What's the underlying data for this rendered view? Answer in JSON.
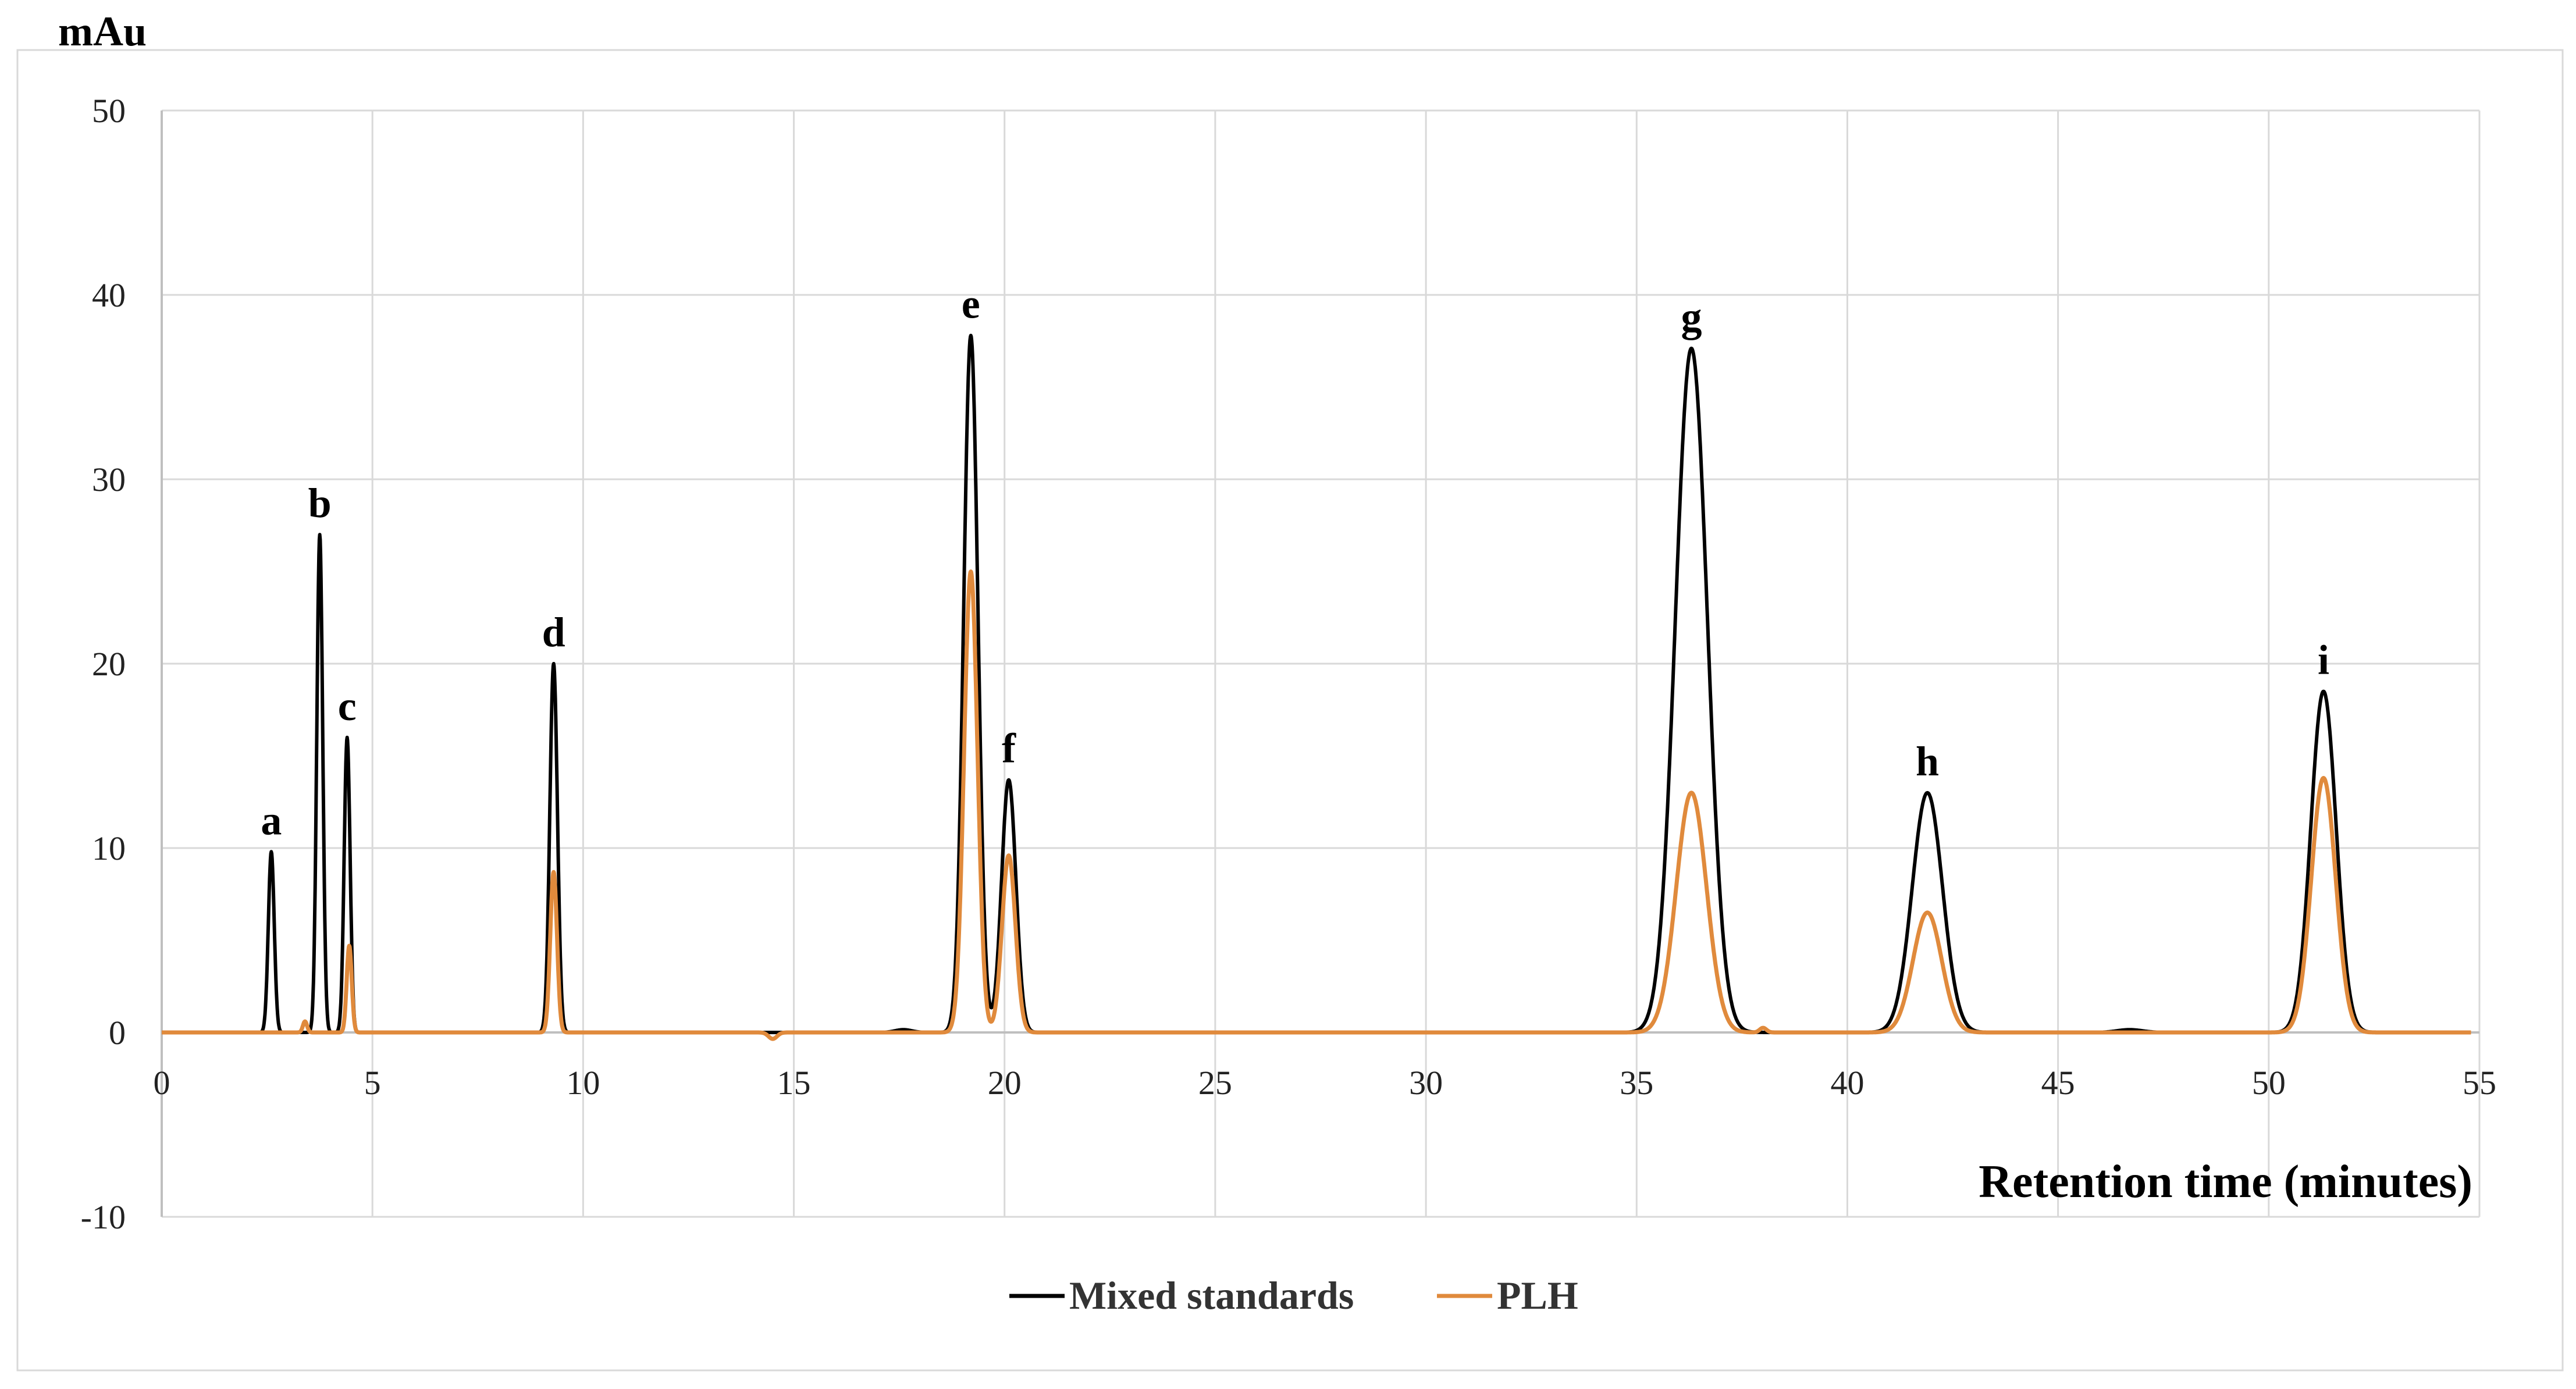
{
  "chart_data": {
    "type": "line",
    "title": "",
    "ylabel": "mAu",
    "xlabel": "Retention time (minutes)",
    "xlim": [
      0,
      55
    ],
    "ylim": [
      -10,
      50
    ],
    "x_ticks": [
      0,
      5,
      10,
      15,
      20,
      25,
      30,
      35,
      40,
      45,
      50,
      55
    ],
    "y_ticks": [
      -10,
      0,
      10,
      20,
      30,
      40,
      50
    ],
    "grid": true,
    "legend_position": "bottom-center",
    "peaks": [
      {
        "label": "a",
        "x": 2.6,
        "y": 9.8
      },
      {
        "label": "b",
        "x": 3.75,
        "y": 27.0
      },
      {
        "label": "c",
        "x": 4.4,
        "y": 16.0
      },
      {
        "label": "d",
        "x": 9.3,
        "y": 20.0
      },
      {
        "label": "e",
        "x": 19.2,
        "y": 37.8
      },
      {
        "label": "f",
        "x": 20.1,
        "y": 13.7
      },
      {
        "label": "g",
        "x": 36.3,
        "y": 37.1
      },
      {
        "label": "h",
        "x": 41.9,
        "y": 13.0
      },
      {
        "label": "i",
        "x": 51.3,
        "y": 18.5
      }
    ],
    "series": [
      {
        "name": "Mixed standards",
        "color": "#000000",
        "peaks": [
          {
            "x": 2.6,
            "height": 9.8,
            "width": 0.07
          },
          {
            "x": 3.75,
            "height": 27.0,
            "width": 0.07
          },
          {
            "x": 4.4,
            "height": 16.0,
            "width": 0.07
          },
          {
            "x": 9.3,
            "height": 20.0,
            "width": 0.09
          },
          {
            "x": 19.2,
            "height": 37.8,
            "width": 0.17
          },
          {
            "x": 20.1,
            "height": 13.7,
            "width": 0.17
          },
          {
            "x": 36.3,
            "height": 37.1,
            "width": 0.38
          },
          {
            "x": 41.9,
            "height": 13.0,
            "width": 0.36
          },
          {
            "x": 51.3,
            "height": 18.5,
            "width": 0.3
          },
          {
            "x": 17.6,
            "height": 0.15,
            "width": 0.2
          },
          {
            "x": 46.7,
            "height": 0.15,
            "width": 0.3
          }
        ]
      },
      {
        "name": "PLH",
        "color": "#E08A3C",
        "peaks": [
          {
            "x": 3.4,
            "height": 0.6,
            "width": 0.05
          },
          {
            "x": 4.45,
            "height": 4.7,
            "width": 0.06
          },
          {
            "x": 9.3,
            "height": 8.7,
            "width": 0.08
          },
          {
            "x": 19.2,
            "height": 25.0,
            "width": 0.16
          },
          {
            "x": 20.1,
            "height": 9.6,
            "width": 0.16
          },
          {
            "x": 36.3,
            "height": 13.0,
            "width": 0.36
          },
          {
            "x": 41.9,
            "height": 6.5,
            "width": 0.34
          },
          {
            "x": 51.3,
            "height": 13.8,
            "width": 0.29
          },
          {
            "x": 14.5,
            "height": -0.35,
            "width": 0.1
          },
          {
            "x": 38.0,
            "height": 0.25,
            "width": 0.08
          }
        ]
      }
    ]
  }
}
